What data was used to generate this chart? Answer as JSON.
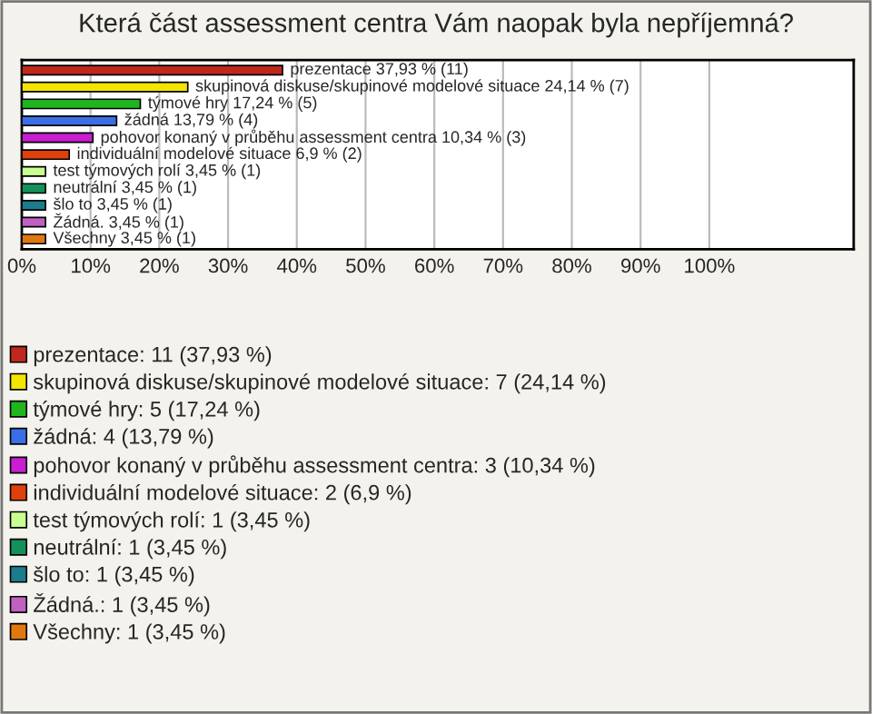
{
  "chart_data": {
    "type": "bar",
    "orientation": "horizontal",
    "title": "Která část assessment centra Vám naopak byla nepříjemná?",
    "categories": [
      null,
      null,
      null,
      null,
      null,
      null,
      null,
      null,
      null,
      null,
      null
    ],
    "values": [
      37.93,
      24.14,
      17.24,
      13.79,
      10.34,
      6.9,
      3.45,
      3.45,
      3.45,
      3.45,
      3.45
    ],
    "colors": [
      "#c0281c",
      "#f5e400",
      "#1fb51f",
      "#3a6ee6",
      "#c81ed0",
      "#e0400c",
      "#c8ff90",
      "#14905a",
      "#1a7c8c",
      "#c060c0",
      "#e07810"
    ],
    "value_labels": [
      "prezentace 37,93 % (11)",
      "skupinová diskuse/skupinové modelové situace 24,14 % (7)",
      "týmové hry 17,24 % (5)",
      "žádná 13,79 % (4)",
      "pohovor konaný v průběhu assessment centra 10,34 % (3)",
      "individuální modelové situace 6,9 % (2)",
      "test týmových rolí 3,45 % (1)",
      "neutrální 3,45 % (1)",
      "šlo to 3,45 % (1)",
      "Žádná. 3,45 % (1)",
      "Všechny 3,45 % (1)"
    ],
    "annotations": [
      "prezentace: 11 (37,93 %)",
      "skupinová diskuse/skupinové modelové situace: 7 (24,14 %)",
      "týmové hry: 5 (17,24 %)",
      "žádná: 4 (13,79 %)",
      "pohovor konaný v průběhu assessment centra: 3 (10,34 %)",
      "individuální modelové situace: 2 (6,9 %)",
      "test týmových rolí: 1 (3,45 %)",
      "neutrální: 1 (3,45 %)",
      "šlo to: 1 (3,45 %)",
      "Žádná.: 1 (3,45 %)",
      "Všechny: 1 (3,45 %)"
    ],
    "xlim": [
      0,
      121
    ],
    "xticks": [
      {
        "value": 0,
        "label": "0%"
      },
      {
        "value": 10,
        "label": "10%"
      },
      {
        "value": 20,
        "label": "20%"
      },
      {
        "value": 30,
        "label": "30%"
      },
      {
        "value": 40,
        "label": "40%"
      },
      {
        "value": 50,
        "label": "50%"
      },
      {
        "value": 60,
        "label": "60%"
      },
      {
        "value": 70,
        "label": "70%"
      },
      {
        "value": 80,
        "label": "80%"
      },
      {
        "value": 90,
        "label": "90%"
      },
      {
        "value": 100,
        "label": "100%"
      }
    ],
    "grid": "x",
    "tick_labels": "x"
  }
}
